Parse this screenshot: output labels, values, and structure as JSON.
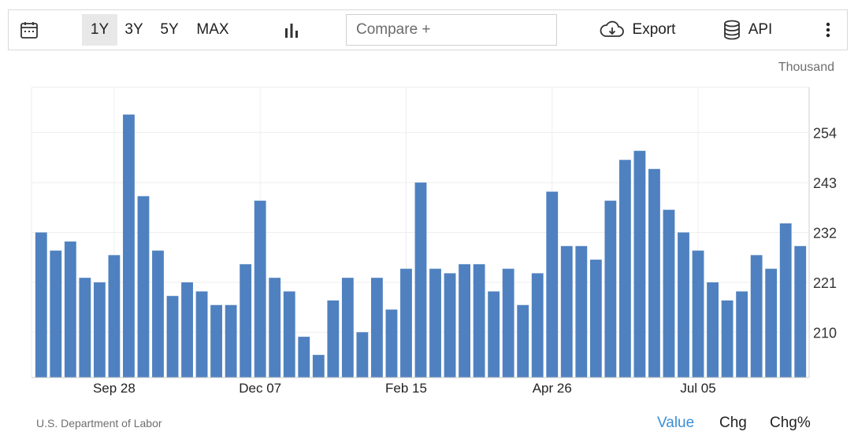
{
  "toolbar": {
    "ranges": [
      "1Y",
      "3Y",
      "5Y",
      "MAX"
    ],
    "active_range": "1Y",
    "compare_placeholder": "Compare +",
    "export_label": "Export",
    "api_label": "API"
  },
  "unit_label": "Thousand",
  "source": "U.S. Department of Labor",
  "tabs": [
    "Value",
    "Chg",
    "Chg%"
  ],
  "active_tab": "Value",
  "colors": {
    "bar": "#4f81c0",
    "active_tab": "#3a8fd8"
  },
  "chart_data": {
    "type": "bar",
    "x_tick_labels": [
      "Sep 28",
      "Dec 07",
      "Feb 15",
      "Apr 26",
      "Jul 05"
    ],
    "y_tick_labels": [
      "210",
      "221",
      "232",
      "243",
      "254"
    ],
    "ylim": [
      200,
      264
    ],
    "grid": true,
    "values": [
      232,
      228,
      230,
      222,
      221,
      227,
      258,
      240,
      228,
      218,
      221,
      219,
      216,
      216,
      225,
      239,
      222,
      219,
      209,
      205,
      217,
      222,
      210,
      222,
      215,
      224,
      243,
      224,
      223,
      225,
      225,
      219,
      224,
      216,
      223,
      241,
      229,
      229,
      226,
      239,
      248,
      250,
      246,
      237,
      232,
      228,
      221,
      217,
      219,
      227,
      224,
      234,
      229
    ]
  }
}
